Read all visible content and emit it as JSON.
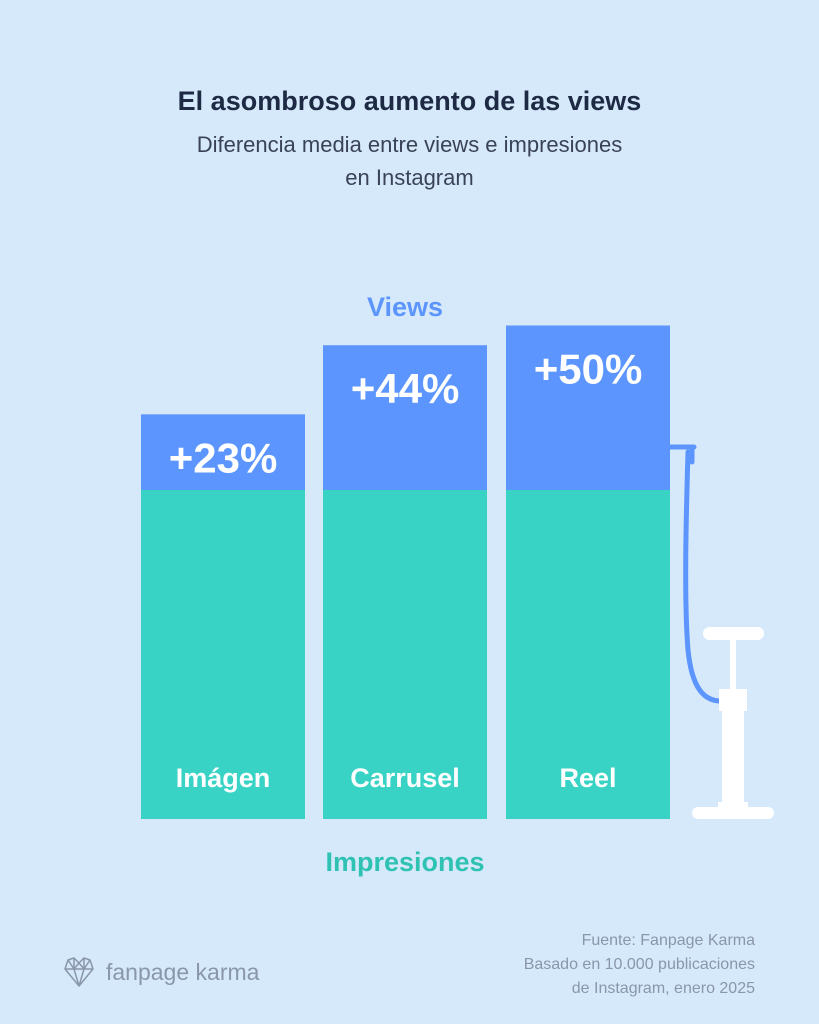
{
  "chart_data": {
    "type": "bar",
    "title": "El asombroso aumento de las views",
    "subtitle": "Diferencia media entre views e impresiones\nen Instagram",
    "categories": [
      "Imágen",
      "Carrusel",
      "Reel"
    ],
    "series": [
      {
        "name": "Impresiones",
        "values": [
          100,
          100,
          100
        ]
      },
      {
        "name": "Views",
        "values": [
          123,
          144,
          150
        ]
      }
    ],
    "data_labels": [
      "+23%",
      "+44%",
      "+50%"
    ],
    "colors": {
      "Views": "#5b95fd",
      "Impresiones": "#38d3c5"
    }
  },
  "source": "Fuente: Fanpage Karma\nBasado en 10.000 publicaciones\nde Instagram, enero 2025",
  "logo": {
    "text": "fanpage karma",
    "icon": "heart-network-icon"
  }
}
